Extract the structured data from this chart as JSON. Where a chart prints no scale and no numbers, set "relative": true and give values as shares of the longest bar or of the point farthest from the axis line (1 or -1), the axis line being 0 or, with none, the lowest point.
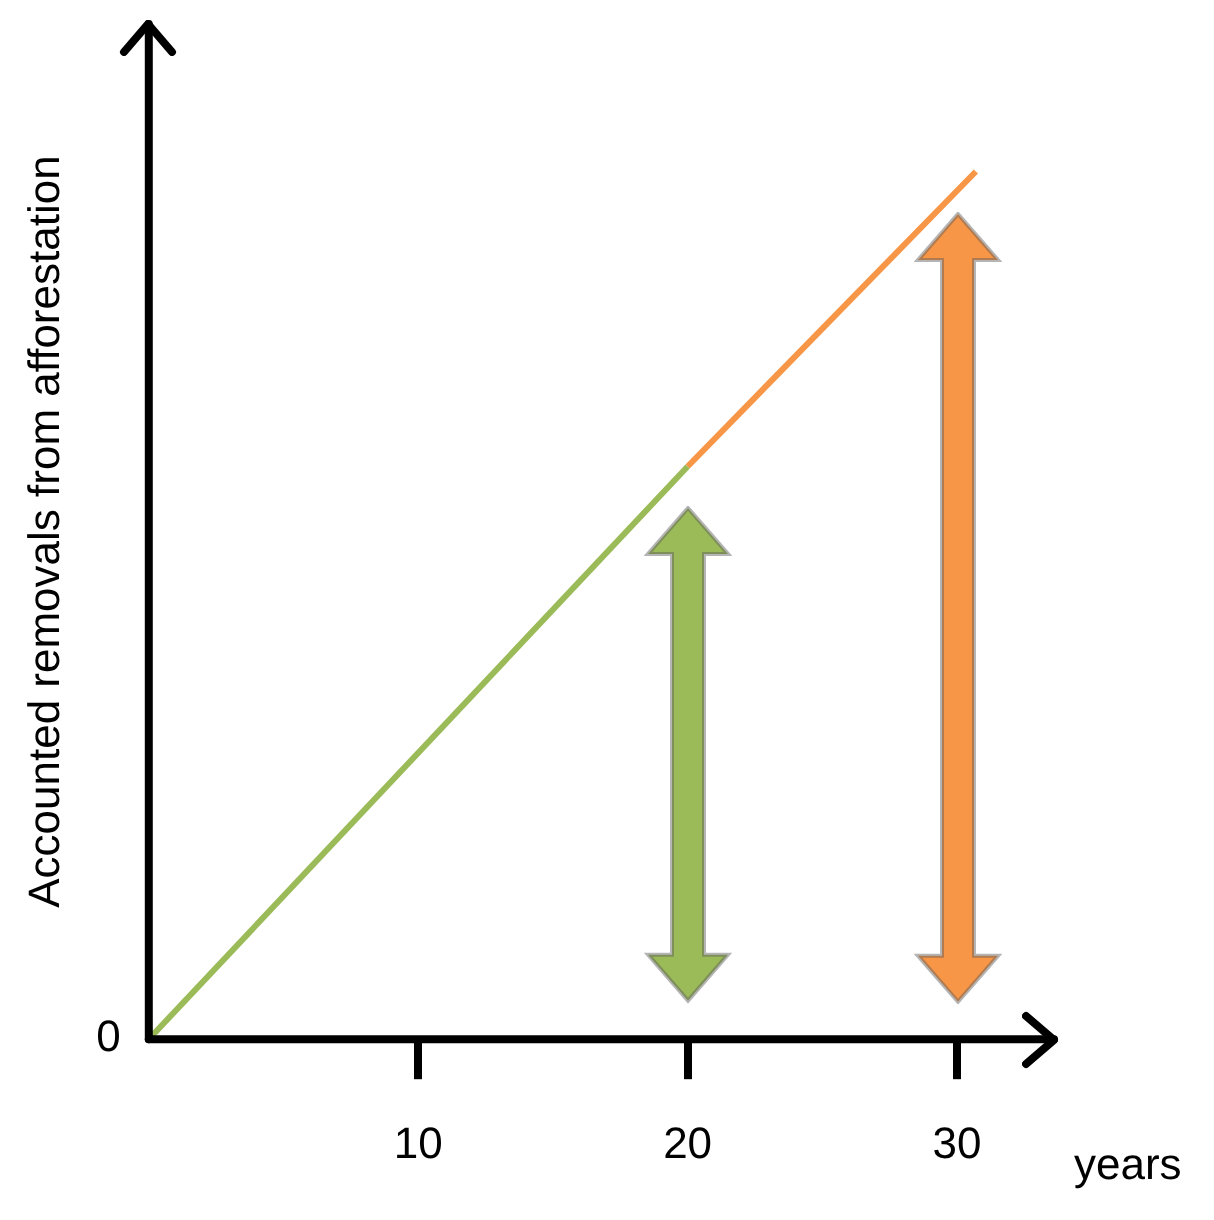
{
  "chart_data": {
    "type": "line",
    "relative": true,
    "ylabel": "Accounted removals from afforestation",
    "xlabel": "years",
    "xlim": [
      0,
      33.6
    ],
    "xticks": [
      10,
      20,
      30
    ],
    "grid": false,
    "legend": false,
    "marker": "none",
    "line_style": "solid",
    "annotations": [
      "0"
    ],
    "series": [
      {
        "color": "#9bbb59",
        "x": [
          0,
          20
        ],
        "values": [
          0,
          0.66
        ]
      },
      {
        "color": "#f79646",
        "x": [
          20,
          30.7
        ],
        "values": [
          0.66,
          1
        ]
      }
    ]
  }
}
